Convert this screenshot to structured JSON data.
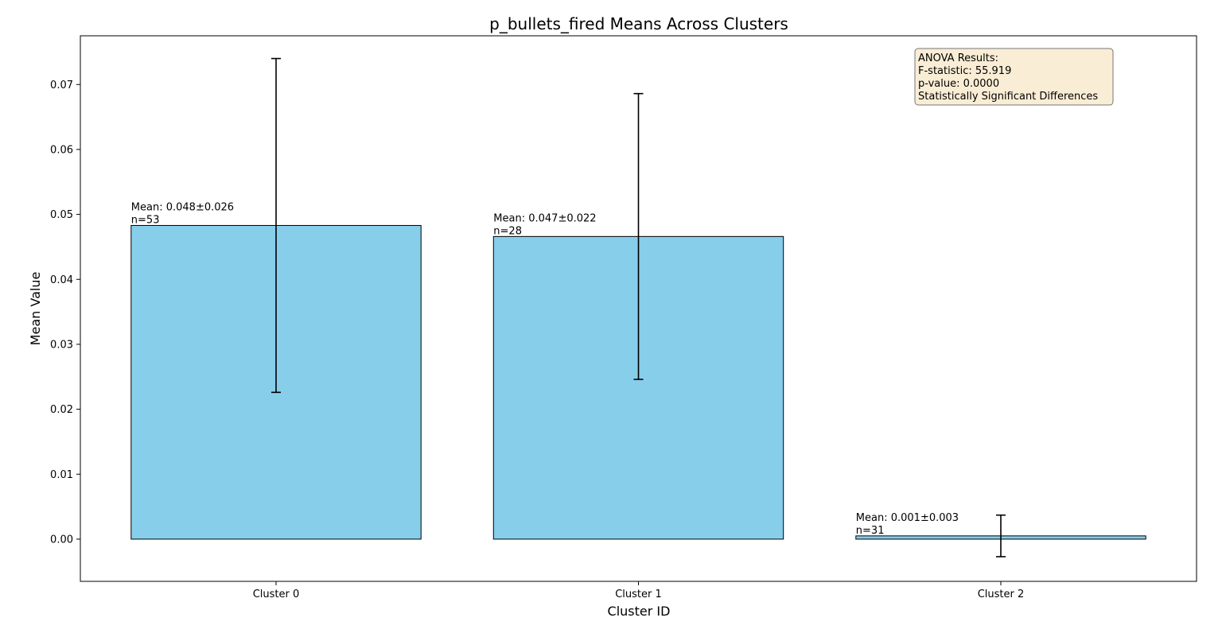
{
  "chart_data": {
    "type": "bar",
    "title": "p_bullets_fired Means Across Clusters",
    "xlabel": "Cluster ID",
    "ylabel": "Mean Value",
    "categories": [
      "Cluster 0",
      "Cluster 1",
      "Cluster 2"
    ],
    "values": [
      0.0483,
      0.0466,
      0.0005
    ],
    "errors": [
      0.0257,
      0.022,
      0.0032
    ],
    "annotations": [
      {
        "mean_text": "Mean: 0.048±0.026",
        "n_text": "n=53"
      },
      {
        "mean_text": "Mean: 0.047±0.022",
        "n_text": "n=28"
      },
      {
        "mean_text": "Mean: 0.001±0.003",
        "n_text": "n=31"
      }
    ],
    "ylim": [
      -0.0065,
      0.0775
    ],
    "yticks": [
      0.0,
      0.01,
      0.02,
      0.03,
      0.04,
      0.05,
      0.06,
      0.07
    ],
    "ytick_labels": [
      "0.00",
      "0.01",
      "0.02",
      "0.03",
      "0.04",
      "0.05",
      "0.06",
      "0.07"
    ],
    "bar_color": "#87CEEB",
    "edge_color": "#000000",
    "grid": false,
    "stats_box": {
      "placement": "top-right",
      "background": "#F5DEB3",
      "lines": [
        "ANOVA Results:",
        "F-statistic: 55.919",
        "p-value: 0.0000",
        "Statistically Significant Differences"
      ]
    }
  }
}
